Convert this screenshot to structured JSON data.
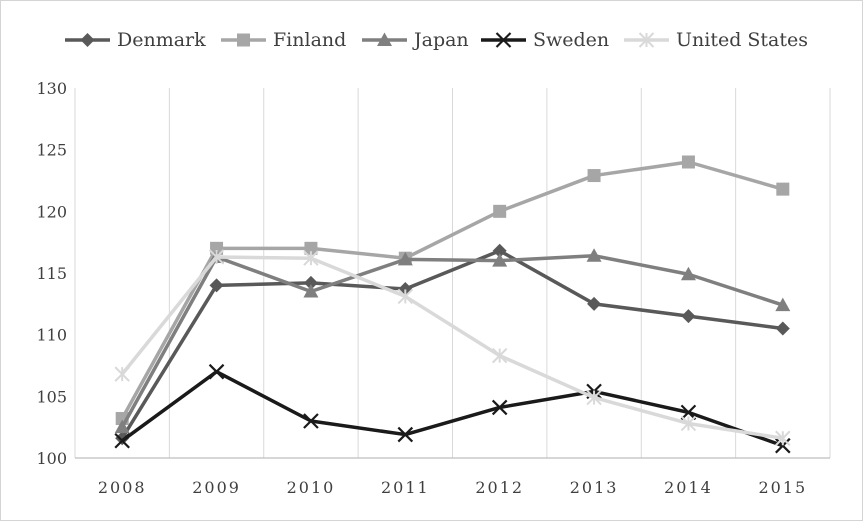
{
  "chart_data": {
    "type": "line",
    "title": "",
    "xlabel": "",
    "ylabel": "",
    "categories": [
      "2008",
      "2009",
      "2010",
      "2011",
      "2012",
      "2013",
      "2014",
      "2015"
    ],
    "ylim": [
      100,
      130
    ],
    "yticks": [
      "100",
      "105",
      "110",
      "115",
      "120",
      "125",
      "130"
    ],
    "grid": "vertical",
    "legend_position": "top",
    "series": [
      {
        "name": "Denmark",
        "marker": "diamond",
        "color": "#595959",
        "width": 3.5,
        "values": [
          101.6,
          114.0,
          114.2,
          113.7,
          116.8,
          112.5,
          111.5,
          110.5
        ]
      },
      {
        "name": "Finland",
        "marker": "square",
        "color": "#a6a6a6",
        "width": 3.5,
        "values": [
          103.2,
          117.0,
          117.0,
          116.2,
          120.0,
          122.9,
          124.0,
          121.8
        ]
      },
      {
        "name": "Japan",
        "marker": "triangle",
        "color": "#7f7f7f",
        "width": 3.5,
        "values": [
          102.5,
          116.3,
          113.5,
          116.1,
          116.0,
          116.4,
          114.9,
          112.4
        ]
      },
      {
        "name": "Sweden",
        "marker": "x",
        "color": "#1a1a1a",
        "width": 3.5,
        "values": [
          101.4,
          107.0,
          103.0,
          101.9,
          104.1,
          105.4,
          103.7,
          101.0
        ]
      },
      {
        "name": "United States",
        "marker": "star",
        "color": "#d9d9d9",
        "width": 3.5,
        "values": [
          106.8,
          116.3,
          116.2,
          113.1,
          108.3,
          104.9,
          102.8,
          101.6
        ]
      }
    ]
  }
}
